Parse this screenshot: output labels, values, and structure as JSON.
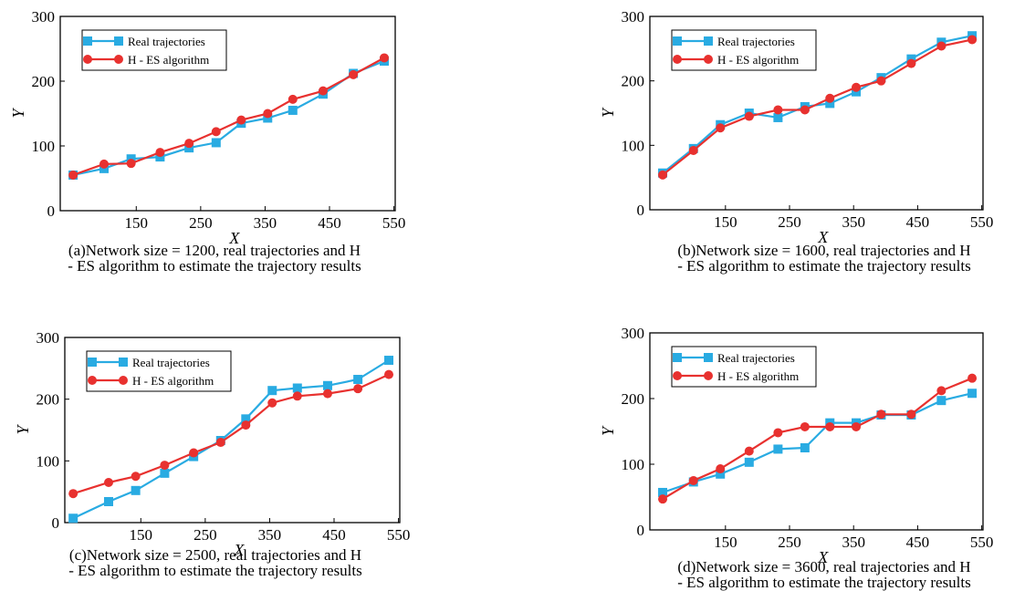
{
  "colors": {
    "real": "#29ABE2",
    "est": "#E8312F"
  },
  "chart_data": [
    {
      "type": "line",
      "xlabel": "X",
      "ylabel": "Y",
      "xlim": [
        32,
        552
      ],
      "ylim": [
        0,
        300
      ],
      "xticks": [
        150,
        250,
        350,
        450,
        550
      ],
      "yticks": [
        0,
        100,
        200,
        300
      ],
      "legend": "top-left",
      "legend_entries": [
        "Real trajectories",
        "H - ES algorithm"
      ],
      "series": [
        {
          "name": "Real trajectories",
          "marker": "square",
          "x": [
            52,
            100,
            142,
            187,
            232,
            274,
            313,
            354,
            393,
            440,
            487,
            535
          ],
          "y": [
            55,
            65,
            80,
            83,
            97,
            105,
            135,
            143,
            155,
            180,
            212,
            231
          ]
        },
        {
          "name": "H - ES algorithm",
          "marker": "circle",
          "x": [
            52,
            100,
            142,
            187,
            232,
            274,
            313,
            354,
            393,
            440,
            487,
            535
          ],
          "y": [
            55,
            72,
            73,
            90,
            104,
            122,
            140,
            150,
            172,
            185,
            210,
            236
          ]
        }
      ],
      "caption_lines": [
        "(a)Network size = 1200, real trajectories and H",
        "- ES algorithm to estimate the trajectory results"
      ]
    },
    {
      "type": "line",
      "xlabel": "X",
      "ylabel": "Y",
      "xlim": [
        32,
        552
      ],
      "ylim": [
        0,
        300
      ],
      "xticks": [
        150,
        250,
        350,
        450,
        550
      ],
      "yticks": [
        0,
        100,
        200,
        300
      ],
      "legend": "top-left",
      "legend_entries": [
        "Real trajectories",
        "H - ES algorithm"
      ],
      "series": [
        {
          "name": "Real trajectories",
          "marker": "square",
          "x": [
            52,
            100,
            142,
            187,
            232,
            274,
            313,
            354,
            393,
            440,
            487,
            535
          ],
          "y": [
            57,
            95,
            132,
            150,
            143,
            160,
            165,
            183,
            205,
            234,
            260,
            270
          ]
        },
        {
          "name": "H - ES algorithm",
          "marker": "circle",
          "x": [
            52,
            100,
            142,
            187,
            232,
            274,
            313,
            354,
            393,
            440,
            487,
            535
          ],
          "y": [
            54,
            92,
            127,
            145,
            155,
            155,
            173,
            190,
            200,
            227,
            254,
            264
          ]
        }
      ],
      "caption_lines": [
        "(b)Network size = 1600, real trajectories and H",
        "- ES algorithm to estimate the trajectory results"
      ]
    },
    {
      "type": "line",
      "xlabel": "X",
      "ylabel": "Y",
      "xlim": [
        32,
        552
      ],
      "ylim": [
        0,
        300
      ],
      "xticks": [
        150,
        250,
        350,
        450,
        550
      ],
      "yticks": [
        0,
        100,
        200,
        300
      ],
      "legend": "top-left",
      "legend_entries": [
        "Real trajectories",
        "H - ES algorithm"
      ],
      "series": [
        {
          "name": "Real trajectories",
          "marker": "square",
          "x": [
            45,
            100,
            142,
            187,
            232,
            274,
            313,
            354,
            393,
            440,
            487,
            535
          ],
          "y": [
            7,
            34,
            52,
            80,
            107,
            133,
            168,
            214,
            218,
            222,
            232,
            263
          ]
        },
        {
          "name": "H - ES algorithm",
          "marker": "circle",
          "x": [
            45,
            100,
            142,
            187,
            232,
            274,
            313,
            354,
            393,
            440,
            487,
            535
          ],
          "y": [
            47,
            65,
            75,
            93,
            113,
            130,
            158,
            194,
            205,
            209,
            217,
            240
          ]
        }
      ],
      "caption_lines": [
        "(c)Network size = 2500, real trajectories and H",
        "- ES algorithm to estimate the trajectory results"
      ]
    },
    {
      "type": "line",
      "xlabel": "X",
      "ylabel": "Y",
      "xlim": [
        32,
        552
      ],
      "ylim": [
        0,
        300
      ],
      "xticks": [
        150,
        250,
        350,
        450,
        550
      ],
      "yticks": [
        0,
        100,
        200,
        300
      ],
      "legend": "top-left",
      "legend_entries": [
        "Real trajectories",
        "H - ES algorithm"
      ],
      "series": [
        {
          "name": "Real trajectories",
          "marker": "square",
          "x": [
            52,
            100,
            142,
            187,
            232,
            274,
            313,
            354,
            393,
            440,
            487,
            535
          ],
          "y": [
            57,
            73,
            85,
            103,
            123,
            125,
            163,
            163,
            175,
            175,
            197,
            208
          ]
        },
        {
          "name": "H - ES algorithm",
          "marker": "circle",
          "x": [
            52,
            100,
            142,
            187,
            232,
            274,
            313,
            354,
            393,
            440,
            487,
            535
          ],
          "y": [
            47,
            75,
            93,
            120,
            148,
            157,
            157,
            157,
            176,
            176,
            212,
            231
          ]
        }
      ],
      "caption_lines": [
        "(d)Network size = 3600, real trajectories and H",
        "- ES algorithm to estimate the trajectory results"
      ]
    }
  ]
}
